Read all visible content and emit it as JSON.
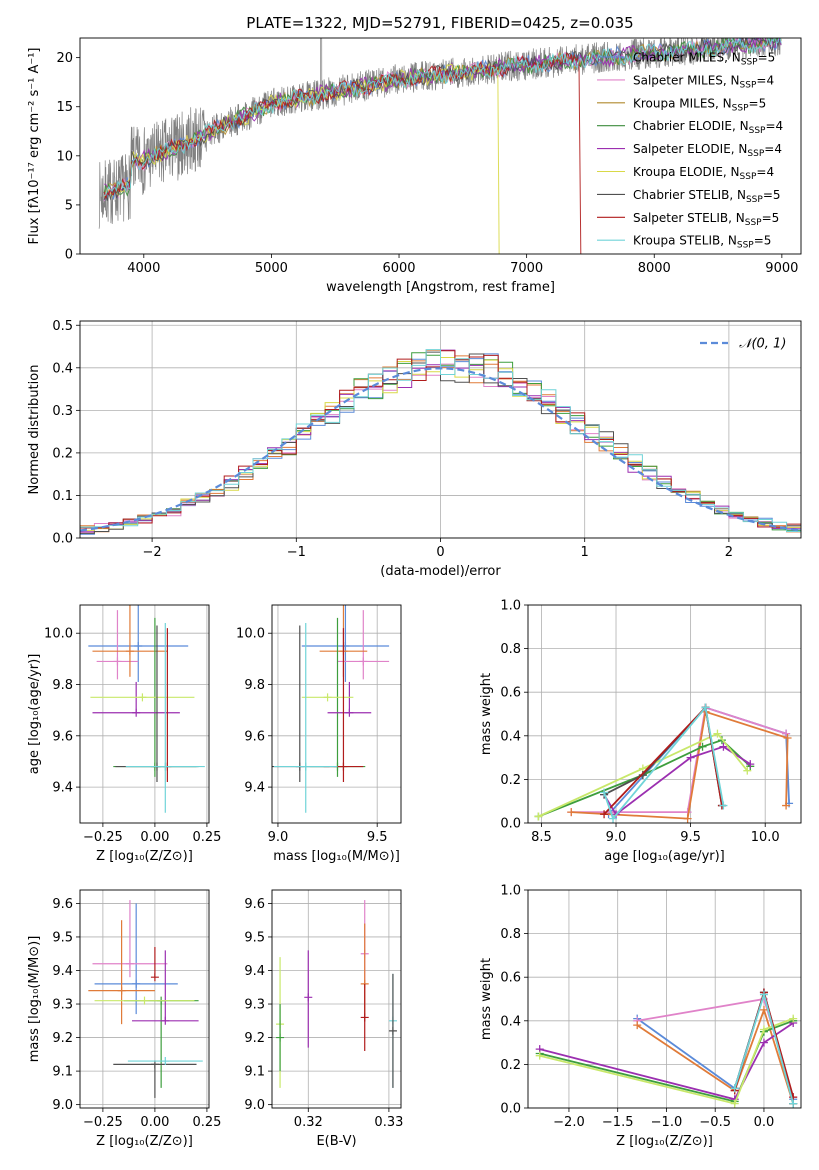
{
  "figure_title": "PLATE=1322, MJD=52791, FIBERID=0425, z=0.035",
  "series_colors": [
    "#5b8bd9",
    "#e083c9",
    "#e07b39",
    "#3d9e3d",
    "#9b2fb0",
    "#d9d948",
    "#505050",
    "#b01c1c",
    "#70d4d8"
  ],
  "chart_data": [
    {
      "id": "spectrum",
      "type": "line",
      "title": "PLATE=1322, MJD=52791, FIBERID=0425, z=0.035",
      "xlabel": "wavelength [Angstrom, rest frame]",
      "ylabel": "Flux [fλ10⁻¹⁷ erg cm⁻² s⁻¹ A⁻¹]",
      "xlim": [
        3500,
        9150
      ],
      "ylim": [
        0,
        22
      ],
      "xticks": [
        "4000",
        "5000",
        "6000",
        "7000",
        "8000",
        "9000"
      ],
      "yticks": [
        "0",
        "5",
        "10",
        "15",
        "20"
      ],
      "grid": false,
      "data_range": [
        3650,
        9000
      ],
      "model_breaks": {
        "Kroupa ELODIE": 6780,
        "Salpeter STELIB": 7420
      },
      "legend": [
        {
          "label": "Chabrier MILES, N",
          "sub": "SSP",
          "suffix": "=5",
          "color": "#5b8bd9"
        },
        {
          "label": "Salpeter MILES, N",
          "sub": "SSP",
          "suffix": "=4",
          "color": "#e083c9"
        },
        {
          "label": "Kroupa MILES, N",
          "sub": "SSP",
          "suffix": "=5",
          "color": "#b08a2e"
        },
        {
          "label": "Chabrier ELODIE, N",
          "sub": "SSP",
          "suffix": "=4",
          "color": "#3d8c3d"
        },
        {
          "label": "Salpeter ELODIE, N",
          "sub": "SSP",
          "suffix": "=4",
          "color": "#9b2fb0"
        },
        {
          "label": "Kroupa ELODIE, N",
          "sub": "SSP",
          "suffix": "=4",
          "color": "#d9d948"
        },
        {
          "label": "Chabrier STELIB, N",
          "sub": "SSP",
          "suffix": "=5",
          "color": "#505050"
        },
        {
          "label": "Salpeter STELIB, N",
          "sub": "SSP",
          "suffix": "=5",
          "color": "#b01c1c"
        },
        {
          "label": "Kroupa STELIB, N",
          "sub": "SSP",
          "suffix": "=5",
          "color": "#70d4d8"
        }
      ]
    },
    {
      "id": "residuals",
      "type": "line",
      "xlabel": "(data-model)/error",
      "ylabel": "Normed distribution",
      "xlim": [
        -2.5,
        2.5
      ],
      "ylim": [
        0,
        0.51
      ],
      "xticks": [
        "−2",
        "−1",
        "0",
        "1",
        "2"
      ],
      "yticks": [
        "0.0",
        "0.1",
        "0.2",
        "0.3",
        "0.4",
        "0.5"
      ],
      "grid": true,
      "bin_width": 0.1,
      "legend": "𝒩(0, 1)",
      "gaussian": {
        "mu": 0,
        "sigma": 1
      }
    },
    {
      "id": "age-vs-metallicity",
      "type": "scatter",
      "xlabel": "Z [log₁₀(Z/Z⊙)]",
      "ylabel": "age  [log₁₀(age/yr)]",
      "xlim": [
        -0.36,
        0.26
      ],
      "ylim": [
        9.26,
        10.11
      ],
      "xticks": [
        "−0.25",
        "0.00",
        "0.25"
      ],
      "yticks": [
        "9.4",
        "9.6",
        "9.8",
        "10.0"
      ],
      "grid": true,
      "points": [
        {
          "x": -0.08,
          "y": 9.95,
          "xerr": 0.24,
          "yerr": [
            0.14,
            0.16
          ],
          "color": "#5b8bd9"
        },
        {
          "x": -0.18,
          "y": 9.89,
          "xerr": 0.1,
          "yerr": [
            0.07,
            0.2
          ],
          "color": "#e083c9"
        },
        {
          "x": -0.12,
          "y": 9.93,
          "xerr": 0.18,
          "yerr": [
            0.1,
            0.18
          ],
          "color": "#e07b39"
        },
        {
          "x": 0.0,
          "y": 9.48,
          "xerr": 0.2,
          "yerr": [
            0.04,
            0.58
          ],
          "color": "#3d9e3d"
        },
        {
          "x": -0.09,
          "y": 9.69,
          "xerr": 0.21,
          "yerr": [
            0.0,
            0.12
          ],
          "color": "#9b2fb0"
        },
        {
          "x": -0.06,
          "y": 9.75,
          "xerr": 0.25,
          "yerr": [
            0.0,
            0.0
          ],
          "color": "#c8e86a"
        },
        {
          "x": 0.01,
          "y": 9.48,
          "xerr": 0.2,
          "yerr": [
            0.06,
            0.55
          ],
          "color": "#505050"
        },
        {
          "x": 0.06,
          "y": 9.48,
          "xerr": 0.0,
          "yerr": [
            0.06,
            0.54
          ],
          "color": "#b01c1c"
        },
        {
          "x": 0.05,
          "y": 9.48,
          "xerr": 0.19,
          "yerr": [
            0.18,
            0.56
          ],
          "color": "#70d4d8"
        }
      ]
    },
    {
      "id": "age-vs-mass",
      "type": "scatter",
      "xlabel": "mass [log₁₀(M/M⊙)]",
      "ylabel": "",
      "xlim": [
        8.97,
        9.62
      ],
      "ylim": [
        9.26,
        10.11
      ],
      "xticks": [
        "9.0",
        "9.5"
      ],
      "yticks": [
        "9.4",
        "9.6",
        "9.8",
        "10.0"
      ],
      "grid": true,
      "points": [
        {
          "x": 9.34,
          "y": 9.95,
          "xerr": 0.22,
          "yerr": [
            0.14,
            0.16
          ],
          "color": "#5b8bd9"
        },
        {
          "x": 9.43,
          "y": 9.89,
          "xerr": 0.13,
          "yerr": [
            0.07,
            0.2
          ],
          "color": "#e083c9"
        },
        {
          "x": 9.33,
          "y": 9.93,
          "xerr": 0.12,
          "yerr": [
            0.1,
            0.18
          ],
          "color": "#e07b39"
        },
        {
          "x": 9.3,
          "y": 9.48,
          "xerr": 0.14,
          "yerr": [
            0.04,
            0.58
          ],
          "color": "#3d9e3d"
        },
        {
          "x": 9.36,
          "y": 9.69,
          "xerr": 0.11,
          "yerr": [
            0.0,
            0.12
          ],
          "color": "#9b2fb0"
        },
        {
          "x": 9.25,
          "y": 9.75,
          "xerr": 0.13,
          "yerr": [
            0.0,
            0.0
          ],
          "color": "#c8e86a"
        },
        {
          "x": 9.11,
          "y": 9.48,
          "xerr": 0.15,
          "yerr": [
            0.06,
            0.55
          ],
          "color": "#505050"
        },
        {
          "x": 9.33,
          "y": 9.48,
          "xerr": 0.1,
          "yerr": [
            0.06,
            0.54
          ],
          "color": "#b01c1c"
        },
        {
          "x": 9.14,
          "y": 9.48,
          "xerr": 0.16,
          "yerr": [
            0.18,
            0.56
          ],
          "color": "#70d4d8"
        }
      ]
    },
    {
      "id": "weight-vs-age",
      "type": "line",
      "xlabel": "age  [log₁₀(age/yr)]",
      "ylabel": "mass weight",
      "xlim": [
        8.41,
        10.24
      ],
      "ylim": [
        0,
        1.0
      ],
      "xticks": [
        "8.5",
        "9.0",
        "9.5",
        "10.0"
      ],
      "yticks": [
        "0.0",
        "0.2",
        "0.4",
        "0.6",
        "0.8",
        "1.0"
      ],
      "grid": true,
      "series": [
        {
          "color": "#5b8bd9",
          "x": [
            8.95,
            9.6,
            10.14,
            10.16
          ],
          "y": [
            0.04,
            0.53,
            0.41,
            0.09
          ]
        },
        {
          "color": "#e083c9",
          "x": [
            8.7,
            9.48,
            9.6,
            10.14
          ],
          "y": [
            0.05,
            0.05,
            0.53,
            0.41
          ]
        },
        {
          "color": "#e07b39",
          "x": [
            8.7,
            9.48,
            9.6,
            10.15,
            10.14
          ],
          "y": [
            0.05,
            0.02,
            0.51,
            0.39,
            0.08
          ]
        },
        {
          "color": "#3d9e3d",
          "x": [
            8.48,
            9.18,
            9.58,
            9.71,
            9.9
          ],
          "y": [
            0.03,
            0.22,
            0.35,
            0.38,
            0.26
          ]
        },
        {
          "color": "#9b2fb0",
          "x": [
            8.92,
            9.0,
            9.5,
            9.72,
            9.9
          ],
          "y": [
            0.13,
            0.04,
            0.3,
            0.35,
            0.27
          ]
        },
        {
          "color": "#c8e86a",
          "x": [
            8.48,
            9.18,
            9.68,
            9.88
          ],
          "y": [
            0.03,
            0.25,
            0.41,
            0.24
          ]
        },
        {
          "color": "#505050",
          "x": [
            8.92,
            9.18,
            9.6,
            9.71
          ],
          "y": [
            0.13,
            0.22,
            0.53,
            0.08
          ]
        },
        {
          "color": "#b01c1c",
          "x": [
            8.92,
            9.6,
            9.71
          ],
          "y": [
            0.04,
            0.53,
            0.08
          ]
        },
        {
          "color": "#70d4d8",
          "x": [
            8.92,
            8.98,
            9.6,
            9.72
          ],
          "y": [
            0.14,
            0.02,
            0.53,
            0.08
          ]
        }
      ]
    },
    {
      "id": "mass-vs-metallicity",
      "type": "scatter",
      "xlabel": "Z [log₁₀(Z/Z⊙)]",
      "ylabel": "mass [log₁₀(M/M⊙)]",
      "xlim": [
        -0.36,
        0.26
      ],
      "ylim": [
        8.99,
        9.64
      ],
      "xticks": [
        "−0.25",
        "0.00",
        "0.25"
      ],
      "yticks": [
        "9.0",
        "9.1",
        "9.2",
        "9.3",
        "9.4",
        "9.5",
        "9.6"
      ],
      "grid": true,
      "points": [
        {
          "x": -0.09,
          "y": 9.36,
          "xerr": 0.2,
          "yerr": [
            0.09,
            0.24
          ],
          "color": "#5b8bd9"
        },
        {
          "x": -0.12,
          "y": 9.42,
          "xerr": 0.18,
          "yerr": [
            0.04,
            0.19
          ],
          "color": "#e083c9"
        },
        {
          "x": -0.16,
          "y": 9.34,
          "xerr": 0.16,
          "yerr": [
            0.1,
            0.21
          ],
          "color": "#e07b39"
        },
        {
          "x": 0.03,
          "y": 9.31,
          "xerr": 0.18,
          "yerr": [
            0.26,
            0.0
          ],
          "color": "#3d9e3d"
        },
        {
          "x": 0.05,
          "y": 9.25,
          "xerr": 0.16,
          "yerr": [
            0.0,
            0.21
          ],
          "color": "#9b2fb0"
        },
        {
          "x": -0.05,
          "y": 9.31,
          "xerr": 0.24,
          "yerr": [
            0.0,
            0.0
          ],
          "color": "#c8e86a"
        },
        {
          "x": 0.0,
          "y": 9.12,
          "xerr": 0.2,
          "yerr": [
            0.1,
            0.0
          ],
          "color": "#505050"
        },
        {
          "x": 0.0,
          "y": 9.38,
          "xerr": 0.0,
          "yerr": [
            0.0,
            0.09
          ],
          "color": "#b01c1c"
        },
        {
          "x": 0.05,
          "y": 9.13,
          "xerr": 0.18,
          "yerr": [
            0.0,
            0.0
          ],
          "color": "#70d4d8"
        }
      ]
    },
    {
      "id": "mass-vs-ebv",
      "type": "scatter",
      "xlabel": "E(B-V)",
      "ylabel": "",
      "xlim": [
        0.3155,
        0.3315
      ],
      "ylim": [
        8.99,
        9.64
      ],
      "xticks": [
        "0.32",
        "0.33"
      ],
      "yticks": [
        "9.0",
        "9.1",
        "9.2",
        "9.3",
        "9.4",
        "9.5",
        "9.6"
      ],
      "grid": true,
      "points": [
        {
          "x": 0.3165,
          "y": 9.24,
          "yerr": [
            0.19,
            0.2
          ],
          "color": "#c8e86a"
        },
        {
          "x": 0.3165,
          "y": 9.2,
          "yerr": [
            0.1,
            0.1
          ],
          "color": "#3d9e3d"
        },
        {
          "x": 0.32,
          "y": 9.32,
          "yerr": [
            0.15,
            0.14
          ],
          "color": "#9b2fb0"
        },
        {
          "x": 0.327,
          "y": 9.45,
          "yerr": [
            0.09,
            0.16
          ],
          "color": "#e083c9"
        },
        {
          "x": 0.327,
          "y": 9.36,
          "yerr": [
            0.09,
            0.18
          ],
          "color": "#e07b39"
        },
        {
          "x": 0.327,
          "y": 9.26,
          "yerr": [
            0.1,
            0.1
          ],
          "color": "#b01c1c"
        },
        {
          "x": 0.3305,
          "y": 9.25,
          "yerr": [
            0.2,
            0.14
          ],
          "color": "#70d4d8"
        },
        {
          "x": 0.3305,
          "y": 9.22,
          "yerr": [
            0.17,
            0.17
          ],
          "color": "#505050"
        }
      ]
    },
    {
      "id": "weight-vs-metallicity",
      "type": "line",
      "xlabel": "Z [log₁₀(Z/Z⊙)]",
      "ylabel": "mass weight",
      "xlim": [
        -2.42,
        0.38
      ],
      "ylim": [
        0,
        1.0
      ],
      "xticks": [
        "−2.0",
        "−1.5",
        "−1.0",
        "−0.5",
        "0.0"
      ],
      "yticks": [
        "0.0",
        "0.2",
        "0.4",
        "0.6",
        "0.8",
        "1.0"
      ],
      "grid": true,
      "series": [
        {
          "color": "#5b8bd9",
          "x": [
            -1.3,
            -0.3,
            0.0,
            0.3
          ],
          "y": [
            0.41,
            0.09,
            0.53,
            0.04
          ]
        },
        {
          "color": "#e083c9",
          "x": [
            -1.3,
            0.0,
            0.3
          ],
          "y": [
            0.4,
            0.5,
            0.05
          ]
        },
        {
          "color": "#e07b39",
          "x": [
            -1.3,
            -0.3,
            0.0,
            0.3
          ],
          "y": [
            0.38,
            0.08,
            0.45,
            0.02
          ]
        },
        {
          "color": "#3d9e3d",
          "x": [
            -2.3,
            -0.3,
            0.0,
            0.3
          ],
          "y": [
            0.25,
            0.03,
            0.35,
            0.4
          ]
        },
        {
          "color": "#9b2fb0",
          "x": [
            -2.3,
            -0.3,
            0.0,
            0.3
          ],
          "y": [
            0.27,
            0.04,
            0.3,
            0.39
          ]
        },
        {
          "color": "#c8e86a",
          "x": [
            -2.3,
            -0.3,
            0.0,
            0.3
          ],
          "y": [
            0.24,
            0.02,
            0.36,
            0.41
          ]
        },
        {
          "color": "#505050",
          "x": [
            -0.3,
            0.0,
            0.3
          ],
          "y": [
            0.09,
            0.53,
            0.02
          ]
        },
        {
          "color": "#b01c1c",
          "x": [
            -0.3,
            0.0,
            0.3
          ],
          "y": [
            0.08,
            0.53,
            0.05
          ]
        },
        {
          "color": "#70d4d8",
          "x": [
            -0.3,
            0.0,
            0.3
          ],
          "y": [
            0.09,
            0.52,
            0.02
          ]
        }
      ]
    }
  ]
}
